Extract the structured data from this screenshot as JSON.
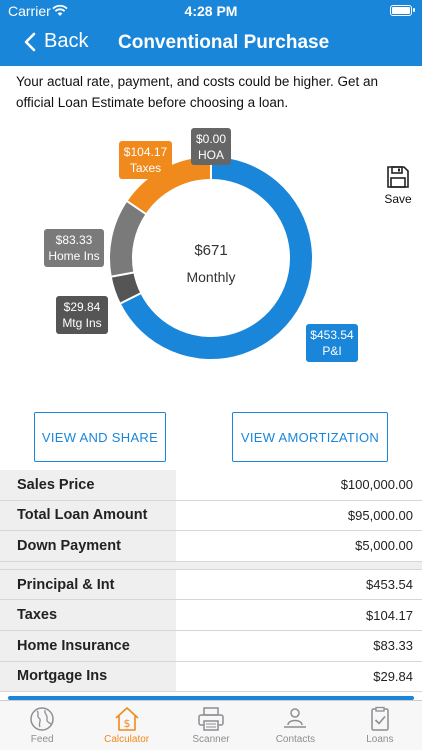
{
  "status": {
    "carrier": "Carrier",
    "time": "4:28 PM"
  },
  "nav": {
    "back_label": "Back",
    "title": "Conventional Purchase"
  },
  "disclaimer": "Your actual rate, payment, and costs could be higher. Get an official Loan Estimate before choosing a loan.",
  "chart_data": {
    "type": "pie",
    "center_value": "$671",
    "center_label": "Monthly",
    "slices": [
      {
        "name": "P&I",
        "value": 453.54,
        "label": "$453.54",
        "color": "#1a86d9"
      },
      {
        "name": "Mtg Ins",
        "value": 29.84,
        "label": "$29.84",
        "color": "#555555"
      },
      {
        "name": "Home Ins",
        "value": 83.33,
        "label": "$83.33",
        "color": "#7a7a7a"
      },
      {
        "name": "Taxes",
        "value": 104.17,
        "label": "$104.17",
        "color": "#f08a1c"
      },
      {
        "name": "HOA",
        "value": 0.0,
        "label": "$0.00",
        "color": "#666666"
      }
    ]
  },
  "save_label": "Save",
  "buttons": {
    "share": "VIEW AND SHARE",
    "amortization": "VIEW AMORTIZATION"
  },
  "summary": [
    {
      "label": "Sales Price",
      "value": "$100,000.00"
    },
    {
      "label": "Total Loan Amount",
      "value": "$95,000.00"
    },
    {
      "label": "Down Payment",
      "value": "$5,000.00"
    }
  ],
  "payments": [
    {
      "label": "Principal & Int",
      "value": "$453.54"
    },
    {
      "label": "Taxes",
      "value": "$104.17"
    },
    {
      "label": "Home Insurance",
      "value": "$83.33"
    },
    {
      "label": "Mortgage Ins",
      "value": "$29.84"
    }
  ],
  "tabs": [
    {
      "label": "Feed",
      "icon": "globe-icon",
      "active": false
    },
    {
      "label": "Calculator",
      "icon": "house-dollar-icon",
      "active": true
    },
    {
      "label": "Scanner",
      "icon": "printer-icon",
      "active": false
    },
    {
      "label": "Contacts",
      "icon": "contacts-icon",
      "active": false
    },
    {
      "label": "Loans",
      "icon": "clipboard-check-icon",
      "active": false
    }
  ]
}
